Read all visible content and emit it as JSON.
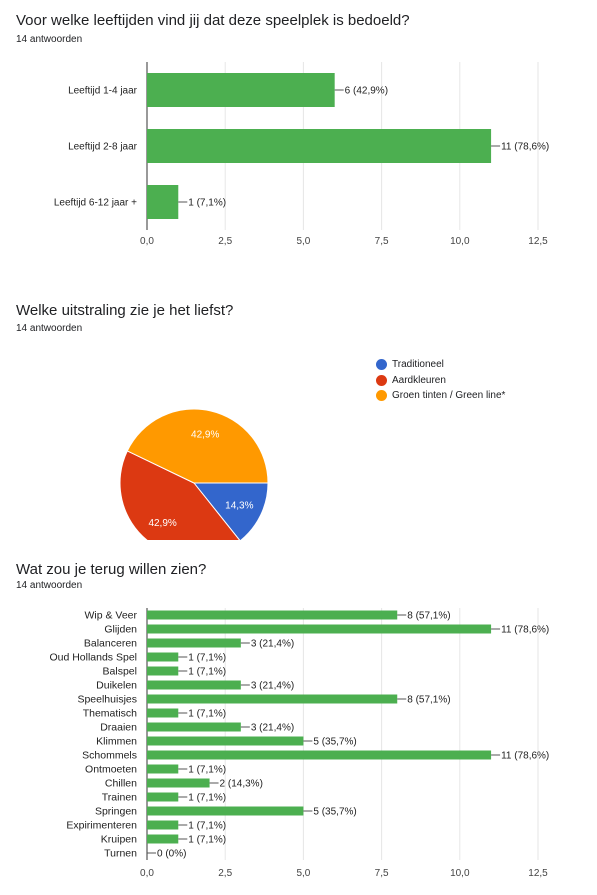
{
  "questions": [
    {
      "title": "Voor welke leeftijden vind jij dat deze speelplek is bedoeld?",
      "responses": "14 antwoorden"
    },
    {
      "title": "Welke uitstraling zie je het liefst?",
      "responses": "14 antwoorden"
    },
    {
      "title": "Wat zou je terug willen zien?",
      "responses": "14 antwoorden"
    }
  ],
  "colors": {
    "bar": "#4caf50",
    "blue": "#3366cc",
    "red": "#dc3912",
    "orange": "#ff9900"
  },
  "chart_data": [
    {
      "type": "bar",
      "orientation": "horizontal",
      "title": "Voor welke leeftijden vind jij dat deze speelplek is bedoeld?",
      "categories": [
        "Leeftijd 1-4 jaar",
        "Leeftijd 2-8 jaar",
        "Leeftijd 6-12 jaar +"
      ],
      "values": [
        6,
        11,
        1
      ],
      "labels": [
        "6 (42,9%)",
        "11 (78,6%)",
        "1 (7,1%)"
      ],
      "xlim": [
        0,
        12.5
      ],
      "ticks": [
        "0,0",
        "2,5",
        "5,0",
        "7,5",
        "10,0",
        "12,5"
      ],
      "grid": true
    },
    {
      "type": "pie",
      "title": "Welke uitstraling zie je het liefst?",
      "categories": [
        "Traditioneel",
        "Aardkleuren",
        "Groen tinten / Green line*"
      ],
      "values": [
        2,
        6,
        6
      ],
      "labels": [
        "14,3%",
        "42,9%",
        "42,9%"
      ],
      "colors": [
        "#3366cc",
        "#dc3912",
        "#ff9900"
      ],
      "legend": "right"
    },
    {
      "type": "bar",
      "orientation": "horizontal",
      "title": "Wat zou je terug willen zien?",
      "categories": [
        "Wip & Veer",
        "Glijden",
        "Balanceren",
        "Oud Hollands Spel",
        "Balspel",
        "Duikelen",
        "Speelhuisjes",
        "Thematisch",
        "Draaien",
        "Klimmen",
        "Schommels",
        "Ontmoeten",
        "Chillen",
        "Trainen",
        "Springen",
        "Expirimenteren",
        "Kruipen",
        "Turnen"
      ],
      "values": [
        8,
        11,
        3,
        1,
        1,
        3,
        8,
        1,
        3,
        5,
        11,
        1,
        2,
        1,
        5,
        1,
        1,
        0
      ],
      "labels": [
        "8 (57,1%)",
        "11 (78,6%)",
        "3 (21,4%)",
        "1 (7,1%)",
        "1 (7,1%)",
        "3 (21,4%)",
        "8 (57,1%)",
        "1 (7,1%)",
        "3 (21,4%)",
        "5 (35,7%)",
        "11 (78,6%)",
        "1 (7,1%)",
        "2 (14,3%)",
        "1 (7,1%)",
        "5 (35,7%)",
        "1 (7,1%)",
        "1 (7,1%)",
        "0 (0%)"
      ],
      "xlim": [
        0,
        12.5
      ],
      "ticks": [
        "0,0",
        "2,5",
        "5,0",
        "7,5",
        "10,0",
        "12,5"
      ],
      "grid": true
    }
  ]
}
